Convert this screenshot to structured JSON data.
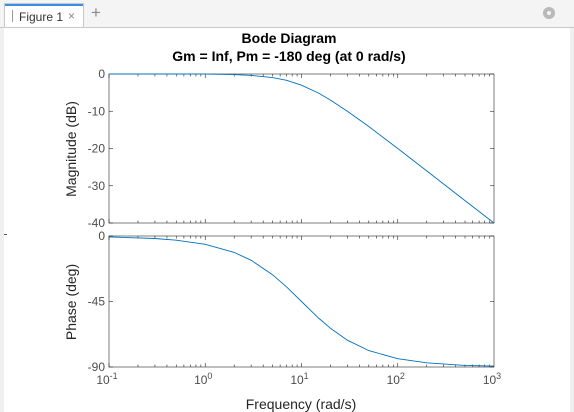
{
  "window": {
    "tab_label": "Figure 1",
    "tab_close_glyph": "×",
    "add_tab_glyph": "+",
    "settings_icon": "gear-icon"
  },
  "colors": {
    "line": "#0072bd",
    "axes": "#262626",
    "tab_accent": "#3a8ee6"
  },
  "chart_data": [
    {
      "type": "line",
      "title": "Bode Diagram",
      "subtitle": "Gm = Inf,  Pm = -180 deg (at 0 rad/s)",
      "xlabel": "",
      "ylabel": "Magnitude (dB)",
      "xscale": "log",
      "xlim": [
        0.1,
        1000
      ],
      "ylim": [
        -40,
        0
      ],
      "yticks": [
        "0",
        "-10",
        "-20",
        "-30",
        "-40"
      ],
      "grid": false,
      "series": [
        {
          "x": [
            0.1,
            0.5,
            1,
            2,
            3,
            5,
            7,
            10,
            15,
            20,
            30,
            50,
            100,
            200,
            500,
            1000
          ],
          "values": [
            0.0,
            -0.01,
            -0.04,
            -0.17,
            -0.37,
            -0.97,
            -1.7,
            -3.0,
            -5.1,
            -7.0,
            -10.0,
            -14.1,
            -20.0,
            -26.0,
            -34.0,
            -40.0
          ]
        }
      ]
    },
    {
      "type": "line",
      "xlabel": "Frequency  (rad/s)",
      "ylabel": "Phase (deg)",
      "xscale": "log",
      "xlim": [
        0.1,
        1000
      ],
      "ylim": [
        -90,
        0
      ],
      "yticks": [
        "0",
        "-45",
        "-90"
      ],
      "xticks": [
        {
          "base": "10",
          "exp": "-1"
        },
        {
          "base": "10",
          "exp": "0"
        },
        {
          "base": "10",
          "exp": "1"
        },
        {
          "base": "10",
          "exp": "2"
        },
        {
          "base": "10",
          "exp": "3"
        }
      ],
      "grid": false,
      "series": [
        {
          "x": [
            0.1,
            0.3,
            0.5,
            1,
            2,
            3,
            5,
            7,
            10,
            15,
            20,
            30,
            50,
            100,
            200,
            500,
            1000
          ],
          "values": [
            -0.6,
            -1.7,
            -2.9,
            -5.7,
            -11.3,
            -16.7,
            -26.6,
            -35.0,
            -45.0,
            -56.3,
            -63.4,
            -71.6,
            -78.7,
            -84.3,
            -87.1,
            -88.9,
            -89.4
          ]
        }
      ]
    }
  ]
}
